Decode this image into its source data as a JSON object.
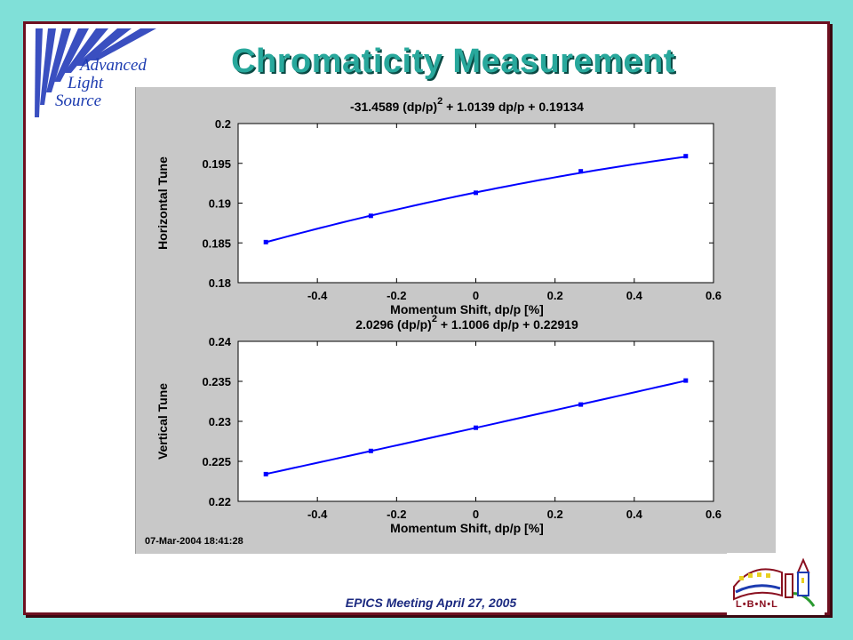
{
  "slide": {
    "title": "Chromaticity Measurement",
    "footer": "EPICS Meeting April 27, 2005"
  },
  "logo_als": {
    "word1": "Advanced",
    "word2": "Light",
    "word3": "Source"
  },
  "logo_lbnl": {
    "text": "L•B•N•L"
  },
  "colors": {
    "background": "#80e0d8",
    "frame": "#6e1020",
    "title": "#28a89c",
    "line": "#0000ff",
    "plot_bg": "#ffffff",
    "figure_bg": "#c8c8c8"
  },
  "timestamp": "07-Mar-2004 18:41:28",
  "chart_data": [
    {
      "type": "line",
      "title": "-31.4589 (dp/p)",
      "title_superscript": "2",
      "title_rest": " + 1.0139 dp/p  + 0.19134",
      "xlabel": "Momentum Shift, dp/p [%]",
      "ylabel": "Horizontal Tune",
      "xlim": [
        -0.6,
        0.6
      ],
      "ylim": [
        0.18,
        0.2
      ],
      "xticks": [
        -0.4,
        -0.2,
        0,
        0.2,
        0.4,
        0.6
      ],
      "xtick_labels": [
        "-0.4",
        "-0.2",
        "0",
        "0.2",
        "0.4",
        "0.6"
      ],
      "yticks": [
        0.18,
        0.185,
        0.19,
        0.195,
        0.2
      ],
      "ytick_labels": [
        "0.18",
        "0.185",
        "0.19",
        "0.195",
        "0.2"
      ],
      "fit": {
        "a": -31.4589,
        "b": 1.0139,
        "c": 0.19134,
        "x_range": [
          -0.53,
          0.53
        ]
      },
      "series": [
        {
          "x": [
            -0.53,
            -0.265,
            0,
            0.265,
            0.53
          ],
          "y": [
            0.1851,
            0.1884,
            0.1913,
            0.194,
            0.1959
          ]
        }
      ],
      "grid": false
    },
    {
      "type": "line",
      "title": "2.0296 (dp/p)",
      "title_superscript": "2",
      "title_rest": " + 1.1006 dp/p  + 0.22919",
      "xlabel": "Momentum Shift, dp/p [%]",
      "ylabel": "Vertical Tune",
      "xlim": [
        -0.6,
        0.6
      ],
      "ylim": [
        0.22,
        0.24
      ],
      "xticks": [
        -0.4,
        -0.2,
        0,
        0.2,
        0.4,
        0.6
      ],
      "xtick_labels": [
        "-0.4",
        "-0.2",
        "0",
        "0.2",
        "0.4",
        "0.6"
      ],
      "yticks": [
        0.22,
        0.225,
        0.23,
        0.235,
        0.24
      ],
      "ytick_labels": [
        "0.22",
        "0.225",
        "0.23",
        "0.235",
        "0.24"
      ],
      "fit": {
        "a": 2.0296,
        "b": 1.1006,
        "c": 0.22919,
        "x_range": [
          -0.53,
          0.53
        ]
      },
      "series": [
        {
          "x": [
            -0.53,
            -0.265,
            0,
            0.265,
            0.53
          ],
          "y": [
            0.2234,
            0.2263,
            0.2292,
            0.2321,
            0.2351
          ]
        }
      ],
      "grid": false
    }
  ]
}
